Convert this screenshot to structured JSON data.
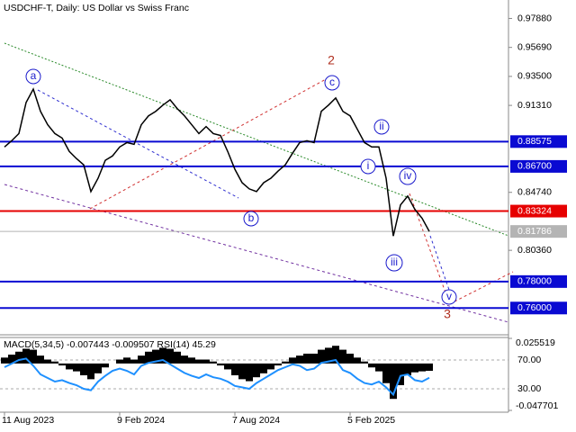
{
  "chart_data": [
    {
      "type": "line",
      "title": "USDCHF-T, Daily:  US Dollar vs Swiss Franc",
      "categories": [
        "11 Aug 2023",
        null,
        null,
        null,
        null,
        null,
        null,
        null,
        null,
        null,
        null,
        null,
        null,
        null,
        null,
        null,
        "9 Feb 2024",
        null,
        null,
        null,
        null,
        null,
        null,
        null,
        null,
        null,
        null,
        null,
        null,
        null,
        null,
        null,
        "7 Aug 2024",
        null,
        null,
        null,
        null,
        null,
        null,
        null,
        null,
        null,
        null,
        null,
        null,
        null,
        null,
        null,
        "5 Feb 2025",
        null,
        null,
        null,
        null,
        null,
        null,
        null,
        null,
        null,
        null,
        null
      ],
      "values": [
        0.8817,
        0.8864,
        0.8918,
        0.9153,
        0.9254,
        0.9086,
        0.8985,
        0.8918,
        0.8884,
        0.8783,
        0.8729,
        0.8682,
        0.848,
        0.8581,
        0.8716,
        0.8749,
        0.8817,
        0.885,
        0.8837,
        0.8985,
        0.9052,
        0.9086,
        0.9133,
        0.9173,
        0.9106,
        0.9052,
        0.8985,
        0.8918,
        0.8971,
        0.8918,
        0.8904,
        0.8783,
        0.8648,
        0.8547,
        0.85,
        0.848,
        0.8547,
        0.8581,
        0.8635,
        0.8682,
        0.8769,
        0.885,
        0.8864,
        0.885,
        0.9086,
        0.9133,
        0.9187,
        0.9086,
        0.9052,
        0.8951,
        0.885,
        0.8817,
        0.8817,
        0.8581,
        0.8144,
        0.8379,
        0.8446,
        0.8345,
        0.8278,
        0.8179
      ],
      "color": "#000000",
      "ylim": [
        0.7425,
        0.99
      ],
      "yticks": [
        {
          "value": 0.9788,
          "label": "0.97880"
        },
        {
          "value": 0.9569,
          "label": "0.95690"
        },
        {
          "value": 0.935,
          "label": "0.93500"
        },
        {
          "value": 0.9131,
          "label": "0.91310"
        },
        {
          "value": 0.8474,
          "label": "0.84740"
        },
        {
          "value": 0.8036,
          "label": "0.80360"
        }
      ],
      "levels": [
        {
          "value": 0.88575,
          "label": "0.88575",
          "color": "#0a0ad2"
        },
        {
          "value": 0.867,
          "label": "0.86700",
          "color": "#0a0ad2"
        },
        {
          "value": 0.83324,
          "label": "0.83324",
          "color": "#e60000"
        },
        {
          "value": 0.78,
          "label": "0.78000",
          "color": "#0a0ad2"
        },
        {
          "value": 0.76,
          "label": "0.76000",
          "color": "#0a0ad2"
        }
      ],
      "current_price": {
        "value": 0.81786,
        "label": "0.81786",
        "color": "#b4b4b4"
      },
      "annotations": [
        "a",
        "b",
        "c",
        "i",
        "ii",
        "iii",
        "iv",
        "v",
        "2",
        "3"
      ]
    },
    {
      "type": "macd_rsi",
      "label": "MACD(5,34,5) -0.007443 -0.009507 RSI(14) 45.29",
      "values": [
        0.006,
        0.009,
        0.012,
        0.015,
        0.014,
        0.008,
        0.004,
        0.002,
        -0.002,
        -0.006,
        -0.008,
        -0.012,
        -0.016,
        -0.01,
        -0.004,
        0,
        0.004,
        0.006,
        0.004,
        0.008,
        0.012,
        0.014,
        0.016,
        0.015,
        0.012,
        0.008,
        0.006,
        0.004,
        0.004,
        0.002,
        -0.002,
        -0.006,
        -0.012,
        -0.016,
        -0.018,
        -0.014,
        -0.01,
        -0.006,
        -0.002,
        0.002,
        0.006,
        0.008,
        0.01,
        0.01,
        0.014,
        0.016,
        0.018,
        0.014,
        0.01,
        0.006,
        0.002,
        -0.004,
        -0.008,
        -0.02,
        -0.036,
        -0.022,
        -0.012,
        -0.009,
        -0.008,
        -0.007443
      ],
      "color": "#000000",
      "ylim": [
        -0.047701,
        0.025519
      ],
      "yticks": [
        0.025519,
        -0.047701
      ],
      "rsi": {
        "values": [
          60,
          65,
          70,
          72,
          62,
          50,
          45,
          40,
          42,
          38,
          35,
          30,
          28,
          40,
          48,
          55,
          58,
          55,
          50,
          62,
          66,
          68,
          70,
          64,
          58,
          52,
          48,
          45,
          50,
          46,
          44,
          40,
          34,
          32,
          30,
          38,
          44,
          50,
          56,
          60,
          64,
          62,
          56,
          58,
          66,
          68,
          70,
          56,
          52,
          44,
          38,
          36,
          40,
          32,
          22,
          48,
          50,
          42,
          40,
          45.29
        ],
        "color": "#1e90ff"
      },
      "y2lim": [
        0,
        100
      ],
      "y2ticks": [
        {
          "value": 70,
          "label": "70.00"
        },
        {
          "value": 30,
          "label": "30.00"
        }
      ]
    }
  ]
}
